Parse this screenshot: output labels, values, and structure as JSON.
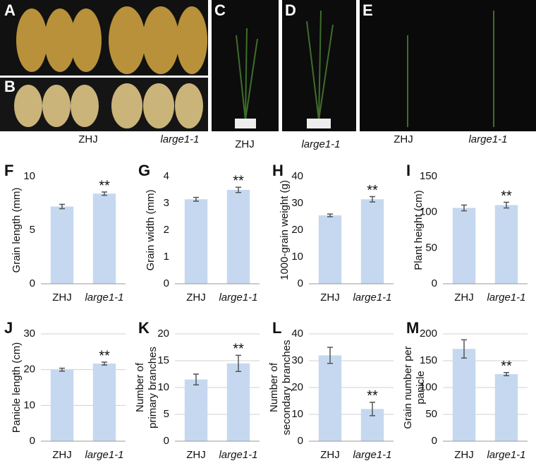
{
  "photo_panels": {
    "letters": [
      "A",
      "B",
      "C",
      "D",
      "E"
    ],
    "captions": [
      "ZHJ",
      "large1-1",
      "ZHJ",
      "large1-1",
      "ZHJ",
      "large1-1"
    ]
  },
  "chart_data": [
    {
      "type": "bar",
      "panel": "F",
      "ylabel": "Grain length (mm)",
      "categories": [
        "ZHJ",
        "large1-1"
      ],
      "values": [
        7.2,
        8.4
      ],
      "errors": [
        0.2,
        0.15
      ],
      "color": "#c5d8f0",
      "ylim": [
        0,
        10
      ],
      "yticks": [
        0,
        5,
        10
      ],
      "grid": false,
      "annotation": {
        "text": "**",
        "category": "large1-1"
      }
    },
    {
      "type": "bar",
      "panel": "G",
      "ylabel": "Grain width (mm)",
      "categories": [
        "ZHJ",
        "large1-1"
      ],
      "values": [
        3.15,
        3.5
      ],
      "errors": [
        0.07,
        0.1
      ],
      "color": "#c5d8f0",
      "ylim": [
        0,
        4
      ],
      "yticks": [
        0,
        1,
        2,
        3,
        4
      ],
      "grid": false,
      "annotation": {
        "text": "**",
        "category": "large1-1"
      }
    },
    {
      "type": "bar",
      "panel": "H",
      "ylabel": "1000-grain weight (g)",
      "categories": [
        "ZHJ",
        "large1-1"
      ],
      "values": [
        25.5,
        31.5
      ],
      "errors": [
        0.5,
        1
      ],
      "color": "#c5d8f0",
      "ylim": [
        0,
        40
      ],
      "yticks": [
        0,
        10,
        20,
        30,
        40
      ],
      "grid": false,
      "annotation": {
        "text": "**",
        "category": "large1-1"
      }
    },
    {
      "type": "bar",
      "panel": "I",
      "ylabel": "Plant height (cm)",
      "categories": [
        "ZHJ",
        "large1-1"
      ],
      "values": [
        106,
        110
      ],
      "errors": [
        4,
        4
      ],
      "color": "#c5d8f0",
      "ylim": [
        0,
        150
      ],
      "yticks": [
        0,
        50,
        100,
        150
      ],
      "grid": false,
      "annotation": {
        "text": "**",
        "category": "large1-1"
      }
    },
    {
      "type": "bar",
      "panel": "J",
      "ylabel": "Panicle length (cm)",
      "categories": [
        "ZHJ",
        "large1-1"
      ],
      "values": [
        20,
        21.7
      ],
      "errors": [
        0.4,
        0.4
      ],
      "color": "#c5d8f0",
      "ylim": [
        0,
        30
      ],
      "yticks": [
        0,
        10,
        20,
        30
      ],
      "grid": true,
      "annotation": {
        "text": "**",
        "category": "large1-1"
      }
    },
    {
      "type": "bar",
      "panel": "K",
      "ylabel": [
        "Number of",
        "primary branches"
      ],
      "categories": [
        "ZHJ",
        "large1-1"
      ],
      "values": [
        11.5,
        14.5
      ],
      "errors": [
        1,
        1.5
      ],
      "color": "#c5d8f0",
      "ylim": [
        0,
        20
      ],
      "yticks": [
        0,
        5,
        10,
        15,
        20
      ],
      "grid": true,
      "annotation": {
        "text": "**",
        "category": "large1-1"
      }
    },
    {
      "type": "bar",
      "panel": "L",
      "ylabel": [
        "Number of",
        "secondary branches"
      ],
      "categories": [
        "ZHJ",
        "large1-1"
      ],
      "values": [
        32,
        12
      ],
      "errors": [
        3,
        2.5
      ],
      "color": "#c5d8f0",
      "ylim": [
        0,
        40
      ],
      "yticks": [
        0,
        10,
        20,
        30,
        40
      ],
      "grid": true,
      "annotation": {
        "text": "**",
        "category": "large1-1"
      }
    },
    {
      "type": "bar",
      "panel": "M",
      "ylabel": [
        "Grain number per",
        "panicle"
      ],
      "categories": [
        "ZHJ",
        "large1-1"
      ],
      "values": [
        172,
        125
      ],
      "errors": [
        17,
        3
      ],
      "color": "#c5d8f0",
      "ylim": [
        0,
        200
      ],
      "yticks": [
        0,
        50,
        100,
        150,
        200
      ],
      "grid": true,
      "annotation": {
        "text": "**",
        "category": "large1-1"
      }
    }
  ]
}
